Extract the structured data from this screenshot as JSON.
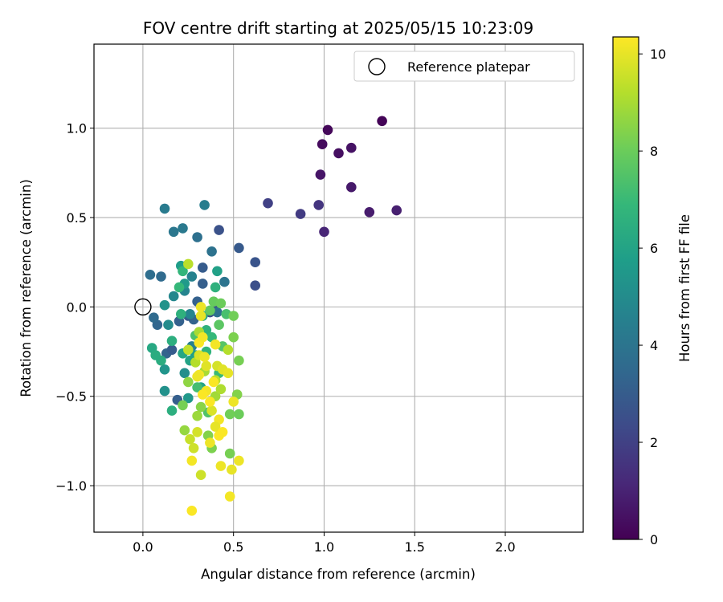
{
  "chart_data": {
    "type": "scatter",
    "title": "FOV centre drift starting at 2025/05/15 10:23:09",
    "xlabel": "Angular distance from reference (arcmin)",
    "ylabel": "Rotation from reference (arcmin)",
    "xlim": [
      -0.27,
      2.43
    ],
    "ylim": [
      -1.26,
      1.47
    ],
    "xticks": [
      0.0,
      0.5,
      1.0,
      1.5,
      2.0
    ],
    "xtick_labels": [
      "0.0",
      "0.5",
      "1.0",
      "1.5",
      "2.0"
    ],
    "yticks": [
      -1.0,
      -0.5,
      0.0,
      0.5,
      1.0
    ],
    "ytick_labels": [
      "−1.0",
      "−0.5",
      "0.0",
      "0.5",
      "1.0"
    ],
    "grid": true,
    "legend": {
      "placement": "upper-right",
      "entries": [
        "Reference platepar"
      ]
    },
    "reference_point": {
      "x": 0.0,
      "y": 0.0
    },
    "colorbar": {
      "label": "Hours from first FF file",
      "colormap": "viridis",
      "range": [
        0,
        10.35
      ],
      "ticks": [
        0,
        2,
        4,
        6,
        8,
        10
      ],
      "tick_labels": [
        "0",
        "2",
        "4",
        "6",
        "8",
        "10"
      ]
    },
    "point_format": "[x, y, hours]",
    "points": [
      [
        1.32,
        1.04,
        0.1
      ],
      [
        1.02,
        0.99,
        0.2
      ],
      [
        0.99,
        0.91,
        0.3
      ],
      [
        1.08,
        0.86,
        0.4
      ],
      [
        1.15,
        0.89,
        0.5
      ],
      [
        0.98,
        0.74,
        0.6
      ],
      [
        1.15,
        0.67,
        0.7
      ],
      [
        1.25,
        0.53,
        0.8
      ],
      [
        1.4,
        0.54,
        0.9
      ],
      [
        1.0,
        0.42,
        1.1
      ],
      [
        0.97,
        0.57,
        1.6
      ],
      [
        0.87,
        0.52,
        1.8
      ],
      [
        0.69,
        0.58,
        2.0
      ],
      [
        0.62,
        0.12,
        2.5
      ],
      [
        0.62,
        0.25,
        2.7
      ],
      [
        0.53,
        0.33,
        2.9
      ],
      [
        0.42,
        0.43,
        2.6
      ],
      [
        0.4,
        0.02,
        2.4
      ],
      [
        0.37,
        -0.03,
        2.5
      ],
      [
        0.33,
        0.22,
        3.0
      ],
      [
        0.33,
        0.13,
        3.1
      ],
      [
        0.3,
        0.03,
        3.2
      ],
      [
        0.28,
        -0.07,
        3.3
      ],
      [
        0.25,
        -0.05,
        3.0
      ],
      [
        0.19,
        -0.52,
        3.1
      ],
      [
        0.13,
        -0.26,
        3.3
      ],
      [
        0.08,
        -0.1,
        3.4
      ],
      [
        0.06,
        -0.06,
        3.6
      ],
      [
        0.2,
        -0.08,
        3.2
      ],
      [
        0.16,
        -0.24,
        3.0
      ],
      [
        0.1,
        0.17,
        3.6
      ],
      [
        0.04,
        0.18,
        3.7
      ],
      [
        0.3,
        0.39,
        3.8
      ],
      [
        0.38,
        0.31,
        3.9
      ],
      [
        0.41,
        -0.03,
        3.8
      ],
      [
        0.45,
        0.14,
        4.0
      ],
      [
        0.22,
        0.44,
        4.2
      ],
      [
        0.17,
        0.42,
        4.1
      ],
      [
        0.12,
        0.55,
        4.3
      ],
      [
        0.34,
        0.57,
        4.4
      ],
      [
        0.27,
        -0.22,
        4.5
      ],
      [
        0.27,
        0.17,
        4.6
      ],
      [
        0.23,
        0.09,
        4.7
      ],
      [
        0.26,
        -0.04,
        4.7
      ],
      [
        0.17,
        0.06,
        4.8
      ],
      [
        0.14,
        -0.1,
        5.0
      ],
      [
        0.12,
        -0.47,
        5.2
      ],
      [
        0.12,
        -0.35,
        5.4
      ],
      [
        0.12,
        0.01,
        5.3
      ],
      [
        0.23,
        -0.37,
        5.1
      ],
      [
        0.25,
        -0.51,
        5.5
      ],
      [
        0.23,
        0.13,
        5.6
      ],
      [
        0.21,
        0.23,
        5.7
      ],
      [
        0.29,
        -0.27,
        5.8
      ],
      [
        0.41,
        0.2,
        5.9
      ],
      [
        0.32,
        -0.45,
        6.0
      ],
      [
        0.26,
        -0.3,
        6.0
      ],
      [
        0.22,
        -0.26,
        6.1
      ],
      [
        0.05,
        -0.23,
        6.2
      ],
      [
        0.07,
        -0.27,
        6.4
      ],
      [
        0.16,
        -0.58,
        6.5
      ],
      [
        0.35,
        -0.13,
        6.6
      ],
      [
        0.4,
        0.11,
        6.6
      ],
      [
        0.22,
        0.2,
        6.8
      ],
      [
        0.2,
        0.11,
        6.9
      ],
      [
        0.1,
        -0.3,
        6.4
      ],
      [
        0.16,
        -0.19,
        6.5
      ],
      [
        0.21,
        -0.04,
        6.6
      ],
      [
        0.33,
        -0.05,
        6.2
      ],
      [
        0.35,
        -0.25,
        6.7
      ],
      [
        0.38,
        -0.17,
        6.9
      ],
      [
        0.42,
        -0.37,
        7.0
      ],
      [
        0.3,
        -0.45,
        7.2
      ],
      [
        0.46,
        -0.04,
        7.3
      ],
      [
        0.29,
        -0.16,
        7.4
      ],
      [
        0.36,
        -0.59,
        7.5
      ],
      [
        0.44,
        -0.22,
        7.6
      ],
      [
        0.42,
        -0.1,
        7.7
      ],
      [
        0.37,
        -0.02,
        7.8
      ],
      [
        0.39,
        0.03,
        7.9
      ],
      [
        0.43,
        0.02,
        8.0
      ],
      [
        0.5,
        -0.05,
        8.1
      ],
      [
        0.53,
        -0.3,
        8.2
      ],
      [
        0.5,
        -0.17,
        8.3
      ],
      [
        0.52,
        -0.49,
        8.4
      ],
      [
        0.53,
        -0.6,
        8.0
      ],
      [
        0.48,
        -0.6,
        8.1
      ],
      [
        0.48,
        -0.82,
        8.2
      ],
      [
        0.38,
        -0.79,
        8.3
      ],
      [
        0.36,
        -0.72,
        8.4
      ],
      [
        0.32,
        -0.56,
        8.5
      ],
      [
        0.25,
        -0.42,
        8.6
      ],
      [
        0.22,
        -0.55,
        8.2
      ],
      [
        0.23,
        -0.69,
        8.7
      ],
      [
        0.3,
        -0.61,
        8.8
      ],
      [
        0.4,
        -0.5,
        8.9
      ],
      [
        0.34,
        -0.36,
        9.0
      ],
      [
        0.43,
        -0.46,
        9.1
      ],
      [
        0.47,
        -0.24,
        9.2
      ],
      [
        0.4,
        -0.41,
        9.3
      ],
      [
        0.31,
        -0.14,
        9.0
      ],
      [
        0.29,
        -0.31,
        9.2
      ],
      [
        0.25,
        -0.24,
        9.4
      ],
      [
        0.25,
        0.24,
        9.3
      ],
      [
        0.26,
        -0.74,
        9.5
      ],
      [
        0.28,
        -0.79,
        9.6
      ],
      [
        0.3,
        -0.7,
        9.7
      ],
      [
        0.32,
        -0.94,
        9.6
      ],
      [
        0.31,
        -0.27,
        9.8
      ],
      [
        0.35,
        -0.33,
        9.9
      ],
      [
        0.38,
        -0.58,
        9.8
      ],
      [
        0.41,
        -0.33,
        9.7
      ],
      [
        0.44,
        -0.35,
        9.9
      ],
      [
        0.47,
        -0.37,
        10.0
      ],
      [
        0.5,
        -0.53,
        10.1
      ],
      [
        0.49,
        -0.91,
        10.0
      ],
      [
        0.53,
        -0.86,
        10.1
      ],
      [
        0.48,
        -1.06,
        10.2
      ],
      [
        0.43,
        -0.89,
        10.1
      ],
      [
        0.42,
        -0.72,
        10.3
      ],
      [
        0.42,
        -0.63,
        10.2
      ],
      [
        0.4,
        -0.67,
        10.0
      ],
      [
        0.37,
        -0.76,
        10.1
      ],
      [
        0.35,
        -0.47,
        10.2
      ],
      [
        0.33,
        -0.49,
        10.3
      ],
      [
        0.31,
        -0.38,
        10.2
      ],
      [
        0.31,
        -0.2,
        10.3
      ],
      [
        0.32,
        -0.05,
        10.0
      ],
      [
        0.32,
        0.0,
        10.1
      ],
      [
        0.33,
        -0.17,
        10.2
      ],
      [
        0.34,
        -0.28,
        10.1
      ],
      [
        0.37,
        -0.53,
        10.3
      ],
      [
        0.39,
        -0.42,
        10.3
      ],
      [
        0.4,
        -0.21,
        10.2
      ],
      [
        0.3,
        -0.39,
        10.1
      ],
      [
        0.27,
        -0.86,
        10.2
      ],
      [
        0.27,
        -1.14,
        10.3
      ],
      [
        0.44,
        -0.7,
        10.3
      ]
    ]
  }
}
